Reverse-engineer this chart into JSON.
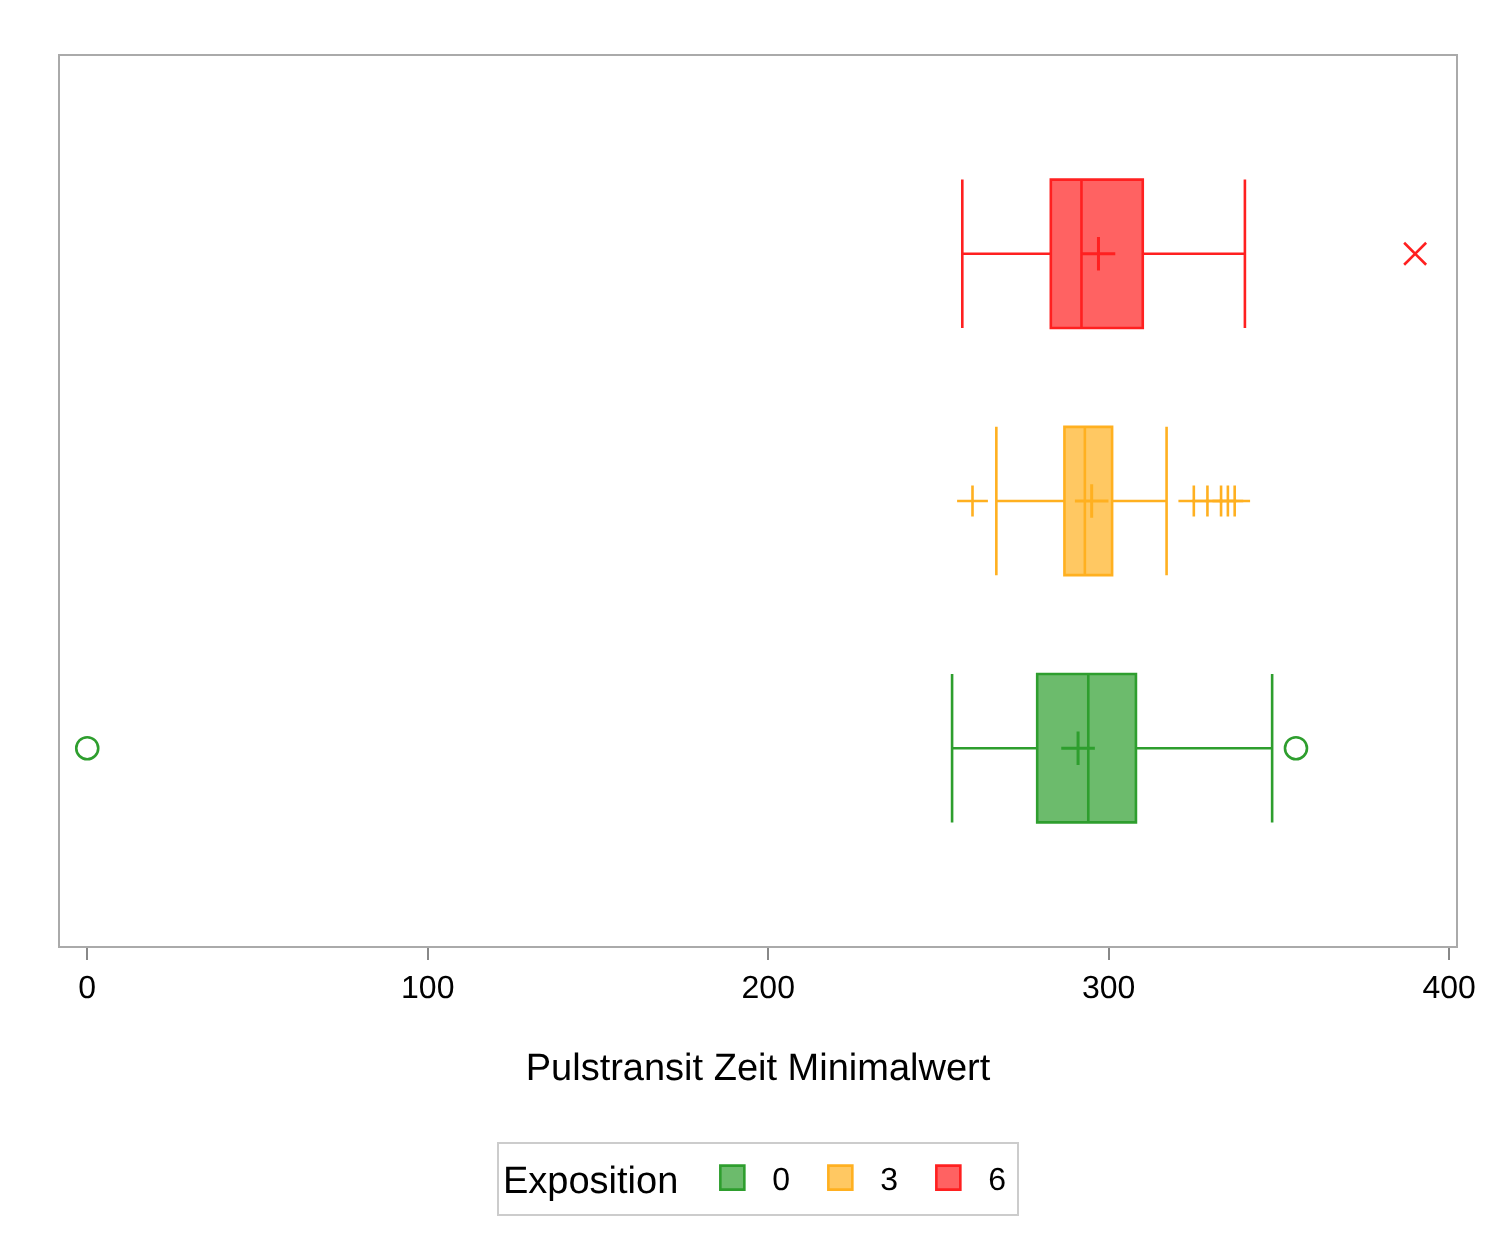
{
  "chart_data": {
    "type": "box",
    "orientation": "horizontal",
    "xlabel": "Pulstransit Zeit Minimalwert",
    "legend_title": "Exposition",
    "legend": "bottom",
    "grid": false,
    "tick_labels": "x",
    "categories": [
      null,
      null,
      null
    ],
    "xlim": [
      -8,
      402
    ],
    "xticks": [
      0,
      100,
      200,
      300,
      400
    ],
    "series": [
      {
        "name": "0",
        "color": "#2e9e2e",
        "marker": "circle",
        "boxes": [
          null,
          null,
          {
            "low": 254,
            "q1": 279,
            "median": 294,
            "q3": 308,
            "high": 348,
            "mean": 291,
            "outliers": [
              0,
              355
            ]
          }
        ]
      },
      {
        "name": "3",
        "color": "#ffb020",
        "marker": "plus",
        "boxes": [
          null,
          {
            "low": 267,
            "q1": 287,
            "median": 293,
            "q3": 301,
            "high": 317,
            "mean": 295,
            "outliers": [
              260,
              325,
              329,
              333,
              335,
              337
            ]
          },
          null
        ]
      },
      {
        "name": "6",
        "color": "#ff2020",
        "marker": "cross",
        "boxes": [
          {
            "low": 257,
            "q1": 283,
            "median": 292,
            "q3": 310,
            "high": 340,
            "mean": 297,
            "outliers": [
              390
            ]
          },
          null,
          null
        ]
      }
    ]
  }
}
